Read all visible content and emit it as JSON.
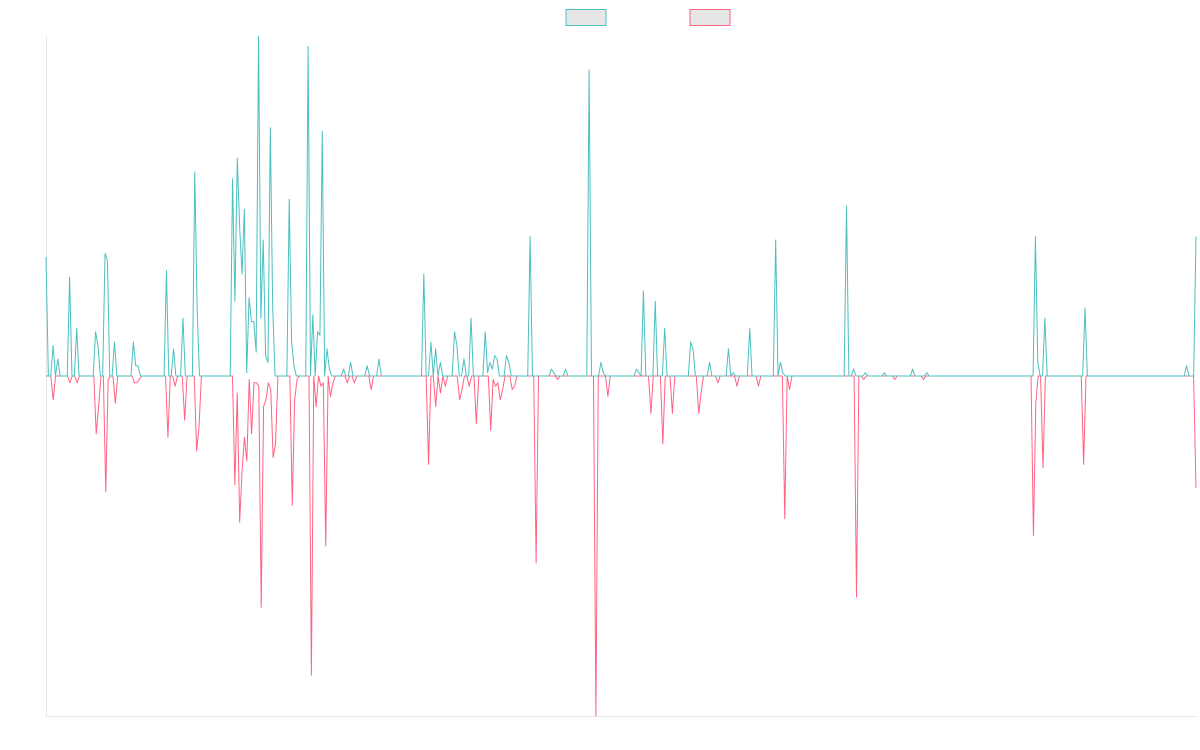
{
  "chart_data": {
    "type": "line",
    "title": "",
    "xlabel": "",
    "ylabel": "",
    "grid": false,
    "legend": {
      "position": "top-center",
      "swatch_fill": "#e6e6e6"
    },
    "ylim": [
      -1,
      1
    ],
    "series": [
      {
        "color": "#4bc0c0",
        "sign": 1,
        "values": [
          0.35,
          0,
          0,
          0.09,
          0,
          0.05,
          0,
          0,
          0,
          0,
          0.29,
          0,
          0,
          0.14,
          0,
          0,
          0,
          0,
          0,
          0,
          0,
          0.13,
          0.09,
          0,
          0,
          0.36,
          0.34,
          0,
          0,
          0.1,
          0,
          0,
          0,
          0,
          0,
          0,
          0,
          0.1,
          0.03,
          0.03,
          0,
          0,
          0,
          0,
          0,
          0,
          0,
          0,
          0,
          0,
          0,
          0.31,
          0,
          0,
          0.08,
          0,
          0,
          0,
          0.17,
          0,
          0,
          0,
          0,
          0.6,
          0.2,
          0,
          0,
          0,
          0,
          0,
          0,
          0,
          0,
          0,
          0,
          0,
          0,
          0,
          0,
          0.58,
          0.22,
          0.64,
          0.44,
          0.3,
          0.49,
          0.01,
          0.23,
          0.16,
          0.16,
          0.07,
          1.0,
          0.17,
          0.4,
          0.06,
          0.04,
          0.73,
          0.2,
          0,
          0,
          0,
          0,
          0,
          0,
          0.52,
          0.1,
          0.03,
          0,
          0,
          0,
          0,
          0,
          0.97,
          0,
          0.18,
          0,
          0.13,
          0.12,
          0.72,
          0,
          0.08,
          0.02,
          0,
          0,
          0,
          0,
          0,
          0.02,
          0,
          0,
          0.04,
          0,
          0,
          0,
          0,
          0,
          0,
          0.03,
          0,
          0,
          0,
          0,
          0.05,
          0,
          0,
          0,
          0,
          0,
          0,
          0,
          0,
          0,
          0,
          0,
          0,
          0,
          0,
          0,
          0,
          0,
          0,
          0.3,
          0,
          0,
          0.1,
          0,
          0.08,
          0,
          0.04,
          0,
          0,
          0,
          0,
          0,
          0.13,
          0.09,
          0,
          0,
          0.05,
          0,
          0,
          0.17,
          0,
          0,
          0,
          0,
          0,
          0.13,
          0.01,
          0.04,
          0.02,
          0.06,
          0.05,
          0,
          0,
          0,
          0.06,
          0.04,
          0,
          0,
          0,
          0,
          0,
          0,
          0,
          0,
          0.41,
          0,
          0,
          0,
          0,
          0,
          0,
          0,
          0,
          0.02,
          0.01,
          0,
          0,
          0,
          0,
          0.02,
          0,
          0,
          0,
          0,
          0,
          0,
          0,
          0,
          0,
          0.9,
          0,
          0,
          0,
          0,
          0.04,
          0.01,
          0,
          0,
          0,
          0,
          0,
          0,
          0,
          0,
          0,
          0,
          0,
          0,
          0,
          0.02,
          0.01,
          0,
          0.25,
          0,
          0,
          0,
          0,
          0.22,
          0,
          0,
          0,
          0.14,
          0,
          0,
          0,
          0,
          0,
          0,
          0,
          0,
          0,
          0,
          0.1,
          0.08,
          0,
          0,
          0,
          0,
          0,
          0,
          0.04,
          0,
          0,
          0,
          0,
          0,
          0,
          0,
          0.08,
          0,
          0.01,
          0,
          0,
          0,
          0,
          0,
          0,
          0.14,
          0,
          0,
          0,
          0,
          0,
          0,
          0,
          0,
          0,
          0,
          0.4,
          0,
          0.04,
          0.01,
          0,
          0,
          0,
          0,
          0,
          0,
          0,
          0,
          0,
          0,
          0,
          0,
          0,
          0,
          0,
          0,
          0,
          0,
          0,
          0,
          0,
          0,
          0,
          0,
          0,
          0,
          0.5,
          0,
          0,
          0.02,
          0,
          0,
          0,
          0,
          0.01,
          0,
          0,
          0,
          0,
          0,
          0,
          0,
          0.01,
          0,
          0,
          0,
          0,
          0,
          0,
          0,
          0,
          0,
          0,
          0,
          0.02,
          0,
          0,
          0,
          0,
          0,
          0.01,
          0,
          0,
          0,
          0,
          0,
          0,
          0,
          0,
          0,
          0,
          0,
          0,
          0,
          0,
          0,
          0,
          0,
          0,
          0,
          0,
          0,
          0,
          0,
          0,
          0,
          0,
          0,
          0,
          0,
          0,
          0,
          0,
          0,
          0,
          0,
          0,
          0,
          0,
          0,
          0,
          0,
          0,
          0,
          0,
          0,
          0.41,
          0.04,
          0,
          0,
          0.17,
          0,
          0,
          0,
          0,
          0,
          0,
          0,
          0,
          0,
          0,
          0,
          0,
          0,
          0,
          0,
          0,
          0.2,
          0,
          0,
          0,
          0,
          0,
          0,
          0,
          0,
          0,
          0,
          0,
          0,
          0,
          0,
          0,
          0,
          0,
          0,
          0,
          0,
          0,
          0,
          0,
          0,
          0,
          0,
          0,
          0,
          0,
          0,
          0,
          0,
          0,
          0,
          0,
          0,
          0,
          0,
          0,
          0,
          0,
          0,
          0.03,
          0,
          0,
          0,
          0.41
        ]
      },
      {
        "color": "#ff6384",
        "sign": -1,
        "values": [
          0,
          0,
          0,
          0.07,
          0,
          0,
          0,
          0,
          0,
          0,
          0.02,
          0,
          0,
          0.02,
          0,
          0,
          0,
          0,
          0,
          0,
          0,
          0.17,
          0.09,
          0,
          0,
          0.34,
          0.01,
          0,
          0,
          0.08,
          0,
          0,
          0,
          0,
          0,
          0,
          0,
          0.02,
          0.02,
          0.01,
          0,
          0,
          0,
          0,
          0,
          0,
          0,
          0,
          0,
          0,
          0,
          0.18,
          0,
          0,
          0.03,
          0,
          0,
          0,
          0.13,
          0,
          0,
          0,
          0,
          0.22,
          0.15,
          0,
          0,
          0,
          0,
          0,
          0,
          0,
          0,
          0,
          0,
          0,
          0,
          0,
          0,
          0.32,
          0.05,
          0.43,
          0.28,
          0.18,
          0.25,
          0.01,
          0.17,
          0.02,
          0.02,
          0.03,
          0.68,
          0.09,
          0.07,
          0.02,
          0.04,
          0.24,
          0.2,
          0,
          0,
          0,
          0,
          0,
          0,
          0.38,
          0.07,
          0.01,
          0,
          0,
          0,
          0,
          0,
          0.88,
          0,
          0.09,
          0,
          0.03,
          0.02,
          0.5,
          0,
          0.06,
          0.02,
          0,
          0,
          0,
          0,
          0,
          0.02,
          0,
          0,
          0.02,
          0,
          0,
          0,
          0,
          0,
          0,
          0.04,
          0,
          0,
          0,
          0,
          0,
          0,
          0,
          0,
          0,
          0,
          0,
          0,
          0,
          0,
          0,
          0,
          0,
          0,
          0,
          0,
          0,
          0,
          0,
          0.26,
          0,
          0,
          0.09,
          0,
          0.05,
          0,
          0.03,
          0,
          0,
          0,
          0,
          0,
          0.07,
          0.04,
          0,
          0,
          0.03,
          0,
          0,
          0.14,
          0,
          0,
          0,
          0,
          0,
          0.16,
          0.01,
          0.03,
          0.02,
          0.07,
          0.04,
          0,
          0,
          0,
          0.04,
          0.03,
          0,
          0,
          0,
          0,
          0,
          0,
          0,
          0,
          0.55,
          0,
          0,
          0,
          0,
          0,
          0,
          0,
          0,
          0.01,
          0,
          0,
          0,
          0,
          0,
          0,
          0,
          0,
          0,
          0,
          0,
          0,
          0,
          0,
          0,
          1.0,
          0,
          0,
          0,
          0,
          0.06,
          0,
          0,
          0,
          0,
          0,
          0,
          0,
          0,
          0,
          0,
          0,
          0,
          0,
          0,
          0,
          0,
          0,
          0.11,
          0,
          0,
          0,
          0,
          0.2,
          0,
          0,
          0,
          0.11,
          0,
          0,
          0,
          0,
          0,
          0,
          0,
          0,
          0,
          0,
          0.11,
          0.05,
          0,
          0,
          0,
          0,
          0,
          0,
          0.02,
          0,
          0,
          0,
          0,
          0,
          0,
          0,
          0.03,
          0,
          0,
          0,
          0,
          0,
          0,
          0,
          0,
          0.03,
          0,
          0,
          0,
          0,
          0,
          0,
          0,
          0,
          0,
          0,
          0.42,
          0,
          0.04,
          0,
          0,
          0,
          0,
          0,
          0,
          0,
          0,
          0,
          0,
          0,
          0,
          0,
          0,
          0,
          0,
          0,
          0,
          0,
          0,
          0,
          0,
          0,
          0,
          0,
          0,
          0,
          0.65,
          0,
          0,
          0.01,
          0,
          0,
          0,
          0,
          0,
          0,
          0,
          0,
          0,
          0,
          0,
          0,
          0.01,
          0,
          0,
          0,
          0,
          0,
          0,
          0,
          0,
          0,
          0,
          0,
          0.01,
          0,
          0,
          0,
          0,
          0,
          0,
          0,
          0,
          0,
          0,
          0,
          0,
          0,
          0,
          0,
          0,
          0,
          0,
          0,
          0,
          0,
          0,
          0,
          0,
          0,
          0,
          0,
          0,
          0,
          0,
          0,
          0,
          0,
          0,
          0,
          0,
          0,
          0,
          0,
          0,
          0,
          0,
          0,
          0,
          0,
          0.47,
          0.08,
          0,
          0,
          0.27,
          0,
          0,
          0,
          0,
          0,
          0,
          0,
          0,
          0,
          0,
          0,
          0,
          0,
          0,
          0,
          0,
          0.26,
          0,
          0,
          0,
          0,
          0,
          0,
          0,
          0,
          0,
          0,
          0,
          0,
          0,
          0,
          0,
          0,
          0,
          0,
          0,
          0,
          0,
          0,
          0,
          0,
          0,
          0,
          0,
          0,
          0,
          0,
          0,
          0,
          0,
          0,
          0,
          0,
          0,
          0,
          0,
          0,
          0,
          0,
          0,
          0,
          0,
          0,
          0.33
        ]
      }
    ]
  }
}
